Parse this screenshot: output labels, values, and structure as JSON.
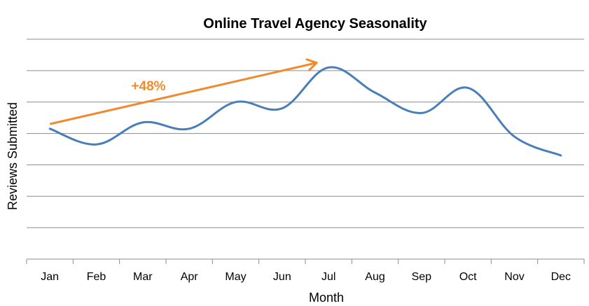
{
  "chart_data": {
    "type": "line",
    "title": "Online Travel Agency Seasonality",
    "xlabel": "Month",
    "ylabel": "Reviews Submitted",
    "categories": [
      "Jan",
      "Feb",
      "Mar",
      "Apr",
      "May",
      "Jun",
      "Jul",
      "Aug",
      "Sep",
      "Oct",
      "Nov",
      "Dec"
    ],
    "series": [
      {
        "values": [
          4.15,
          3.65,
          4.35,
          4.15,
          5.0,
          4.8,
          6.1,
          5.3,
          4.65,
          5.45,
          3.9,
          3.3
        ],
        "color": "#4a7ebb"
      }
    ],
    "ylim": [
      0,
      7
    ],
    "y_gridlines": [
      1,
      2,
      3,
      4,
      5,
      6,
      7
    ],
    "y_tick_labels_shown": false,
    "grid": true,
    "legend": "none",
    "annotation": {
      "text": "+48%",
      "color": "#f18a2e",
      "arrow_from": {
        "x": "Jan",
        "y": 4.3
      },
      "arrow_to": {
        "x": "Jul",
        "y": 6.25
      }
    }
  }
}
